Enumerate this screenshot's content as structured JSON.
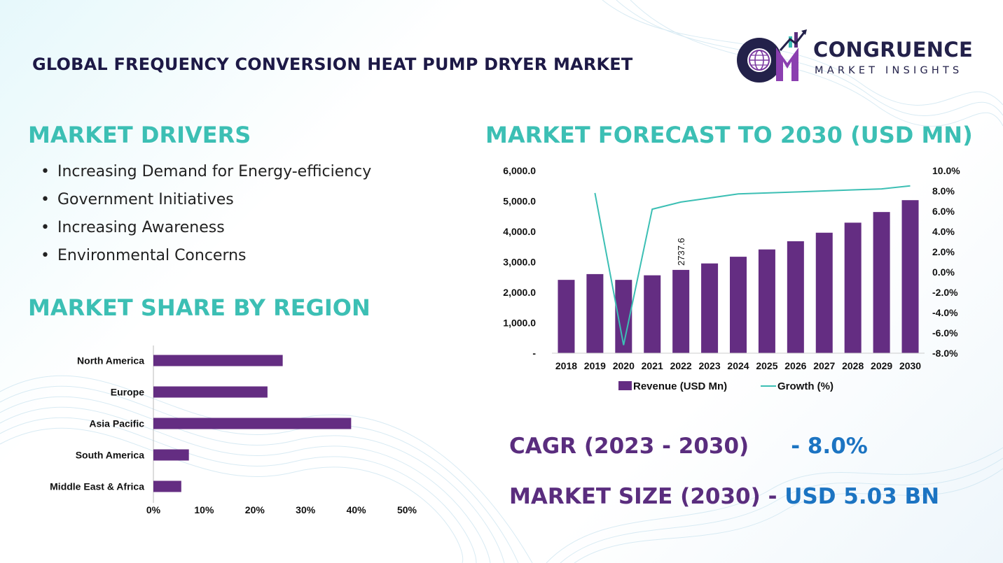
{
  "title": "GLOBAL FREQUENCY CONVERSION HEAT PUMP DRYER MARKET",
  "logo": {
    "name": "CONGRUENCE",
    "tagline": "MARKET INSIGHTS",
    "icon": "cm-globe-logo-icon"
  },
  "colors": {
    "accent_teal": "#3cbfb4",
    "bar_purple": "#642d82",
    "stat_purple": "#5a2d7e",
    "stat_blue": "#1c74c2",
    "title_navy": "#1d1946"
  },
  "drivers": {
    "heading": "MARKET DRIVERS",
    "items": [
      "Increasing Demand for Energy-efficiency",
      "Government Initiatives",
      "Increasing Awareness",
      "Environmental Concerns"
    ]
  },
  "region": {
    "heading": "MARKET SHARE BY REGION"
  },
  "forecast": {
    "heading": "MARKET FORECAST TO 2030 (USD MN)"
  },
  "stats": {
    "cagr_label": "CAGR (2023 - 2030)",
    "cagr_value": "- 8.0%",
    "size_label": "MARKET SIZE (2030) - ",
    "size_value": "USD 5.03 BN"
  },
  "chart_data": [
    {
      "type": "bar",
      "orientation": "horizontal",
      "categories": [
        "North America",
        "Europe",
        "Asia Pacific",
        "South America",
        "Middle East & Africa"
      ],
      "values": [
        25.5,
        22.5,
        39,
        7,
        5.5
      ],
      "xlim": [
        0,
        50
      ],
      "xticks": [
        "0%",
        "10%",
        "20%",
        "30%",
        "40%",
        "50%"
      ],
      "grid": false
    },
    {
      "type": "bar",
      "categories": [
        "2018",
        "2019",
        "2020",
        "2021",
        "2022",
        "2023",
        "2024",
        "2025",
        "2026",
        "2027",
        "2028",
        "2029",
        "2030"
      ],
      "series": [
        {
          "name": "Revenue (USD Mn)",
          "type": "bar",
          "axis": "left",
          "values": [
            2410,
            2600,
            2410,
            2560,
            2737.6,
            2950,
            3170,
            3410,
            3680,
            3960,
            4290,
            4640,
            5030
          ]
        },
        {
          "name": "Growth (%)",
          "type": "line",
          "axis": "right",
          "values": [
            null,
            7.8,
            -7.2,
            6.2,
            6.9,
            7.3,
            7.7,
            7.8,
            7.9,
            8.0,
            8.1,
            8.2,
            8.5
          ]
        }
      ],
      "data_labels": [
        {
          "category": "2022",
          "text": "2737.6"
        }
      ],
      "ylim": [
        0,
        6000
      ],
      "yticks": [
        "-",
        "1,000.0",
        "2,000.0",
        "3,000.0",
        "4,000.0",
        "5,000.0",
        "6,000.0"
      ],
      "y2lim": [
        -8,
        10
      ],
      "y2ticks": [
        "-8.0%",
        "-6.0%",
        "-4.0%",
        "-2.0%",
        "0.0%",
        "2.0%",
        "4.0%",
        "6.0%",
        "8.0%",
        "10.0%"
      ],
      "legend": "bottom",
      "grid": false
    }
  ]
}
